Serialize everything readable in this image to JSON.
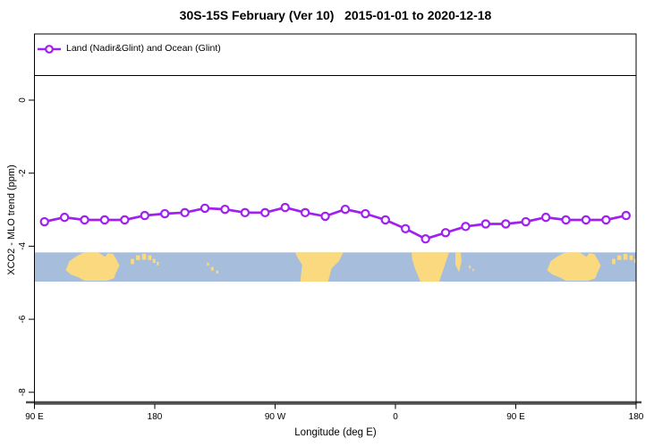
{
  "title": "30S-15S February (Ver 10)   2015-01-01 to 2020-12-18",
  "legend": {
    "label": "Land (Nadir&Glint) and Ocean (Glint)"
  },
  "x_axis_title": "Longitude (deg E)",
  "y_axis_title": "XCO2 - MLO trend (ppm)",
  "colors": {
    "series": "#A020F0",
    "marker_fill": "#FFFFFF",
    "ocean": "#A6BEDC",
    "land": "#FBD97E",
    "axis": "#000000",
    "heavy_axis_line": "#4D4D4D"
  },
  "chart_data": {
    "type": "line",
    "title": "30S-15S February (Ver 10)   2015-01-01 to 2020-12-18",
    "xlabel": "Longitude (deg E)",
    "ylabel": "XCO2 - MLO trend (ppm)",
    "xlim": [
      90,
      540
    ],
    "ylim": [
      -8.3,
      1.8
    ],
    "grid": false,
    "legend_position": "top-left",
    "x_ticks": [
      {
        "pos": 90,
        "label": "90 E"
      },
      {
        "pos": 180,
        "label": "180"
      },
      {
        "pos": 270,
        "label": "90 W"
      },
      {
        "pos": 360,
        "label": "0"
      },
      {
        "pos": 450,
        "label": "90 E"
      },
      {
        "pos": 540,
        "label": "180"
      }
    ],
    "y_ticks": [
      {
        "pos": 0,
        "label": "0"
      },
      {
        "pos": -2,
        "label": "-2"
      },
      {
        "pos": -4,
        "label": "-4"
      },
      {
        "pos": -6,
        "label": "-6"
      },
      {
        "pos": -8,
        "label": "-8"
      }
    ],
    "series": [
      {
        "name": "Land (Nadir&Glint) and Ocean (Glint)",
        "color": "#A020F0",
        "marker": "open-circle",
        "x_deg_unwrapped": [
          97.5,
          112.5,
          127.5,
          142.5,
          157.5,
          172.5,
          187.5,
          202.5,
          217.5,
          232.5,
          247.5,
          262.5,
          277.5,
          292.5,
          307.5,
          322.5,
          337.5,
          352.5,
          367.5,
          382.5,
          397.5,
          412.5,
          427.5,
          442.5,
          457.5,
          472.5,
          487.5,
          502.5,
          517.5,
          532.5
        ],
        "y_ppm": [
          -3.33,
          -3.21,
          -3.28,
          -3.28,
          -3.28,
          -3.16,
          -3.11,
          -3.08,
          -2.96,
          -2.99,
          -3.08,
          -3.08,
          -2.94,
          -3.08,
          -3.18,
          -2.99,
          -3.11,
          -3.28,
          -3.52,
          -3.8,
          -3.63,
          -3.46,
          -3.39,
          -3.39,
          -3.33,
          -3.21,
          -3.28,
          -3.28,
          -3.28,
          -3.16
        ]
      }
    ],
    "map_band": {
      "description": "world coastline strip for latitude band 30S-15S",
      "y_top": -4.17,
      "y_bottom": -4.97,
      "wrap_degrees": 360,
      "land_polygons": {
        "australia": [
          [
            113.4,
            0.61
          ],
          [
            116.1,
            0.3
          ],
          [
            120.8,
            0.15
          ],
          [
            125.5,
            0.03
          ],
          [
            130.0,
            0.0
          ],
          [
            137.5,
            0.0
          ],
          [
            142.9,
            0.15
          ],
          [
            144.9,
            0.03
          ],
          [
            148.9,
            0.06
          ],
          [
            151.6,
            0.27
          ],
          [
            153.6,
            0.45
          ],
          [
            150.9,
            0.7
          ],
          [
            149.6,
            0.88
          ],
          [
            144.2,
            0.97
          ],
          [
            127.5,
            0.97
          ],
          [
            122.8,
            0.85
          ],
          [
            117.5,
            0.76
          ]
        ],
        "south_america": [
          [
            284.9,
            0.0
          ],
          [
            321.0,
            0.0
          ],
          [
            317.7,
            0.3
          ],
          [
            312.3,
            0.55
          ],
          [
            309.6,
            1.0
          ],
          [
            288.9,
            1.0
          ],
          [
            290.2,
            0.42
          ],
          [
            286.9,
            0.18
          ]
        ],
        "southern_africa": [
          [
            372.0,
            0.0
          ],
          [
            400.1,
            0.0
          ],
          [
            396.8,
            0.45
          ],
          [
            392.7,
            1.0
          ],
          [
            378.7,
            1.0
          ],
          [
            374.6,
            0.55
          ],
          [
            372.6,
            0.24
          ]
        ],
        "madagascar": [
          [
            404.8,
            0.0
          ],
          [
            408.8,
            0.0
          ],
          [
            409.5,
            0.3
          ],
          [
            407.5,
            0.67
          ],
          [
            404.8,
            0.42
          ]
        ]
      },
      "island_rects": [
        [
          162.0,
          0.22,
          2.5,
          0.18
        ],
        [
          166.0,
          0.1,
          3.0,
          0.16
        ],
        [
          170.5,
          0.05,
          3.0,
          0.2
        ],
        [
          175.0,
          0.1,
          2.5,
          0.16
        ],
        [
          178.5,
          0.22,
          2.0,
          0.14
        ],
        [
          181.5,
          0.32,
          1.5,
          0.12
        ],
        [
          219.0,
          0.35,
          1.5,
          0.1
        ],
        [
          222.0,
          0.5,
          2.0,
          0.12
        ],
        [
          226.0,
          0.62,
          1.5,
          0.1
        ],
        [
          415.0,
          0.45,
          1.3,
          0.1
        ],
        [
          417.8,
          0.56,
          1.0,
          0.08
        ]
      ]
    }
  }
}
